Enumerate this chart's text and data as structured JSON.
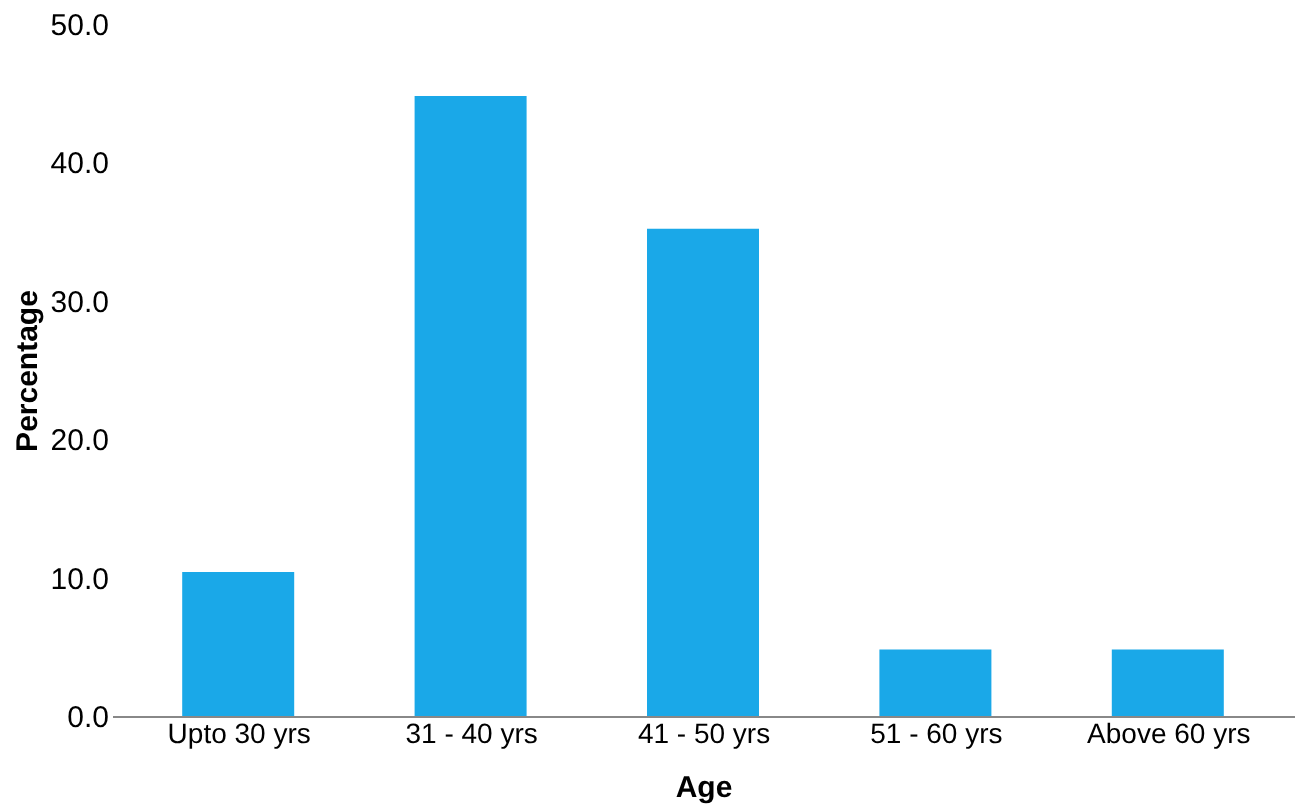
{
  "chart_data": {
    "type": "bar",
    "xlabel": "Age",
    "ylabel": "Percentage",
    "categories": [
      "Upto 30 yrs",
      "31 - 40 yrs",
      "41 - 50 yrs",
      "51 - 60 yrs",
      "Above 60 yrs"
    ],
    "values": [
      10.4,
      44.8,
      35.2,
      4.8,
      4.8
    ],
    "color": "#1aa8e8",
    "ylim": [
      0,
      50
    ],
    "yticks": [
      {
        "value": 0,
        "label": "0.0"
      },
      {
        "value": 10,
        "label": "10.0"
      },
      {
        "value": 20,
        "label": "20.0"
      },
      {
        "value": 30,
        "label": "30.0"
      },
      {
        "value": 40,
        "label": "40.0"
      },
      {
        "value": 50,
        "label": "50.0"
      }
    ],
    "grid": false
  }
}
